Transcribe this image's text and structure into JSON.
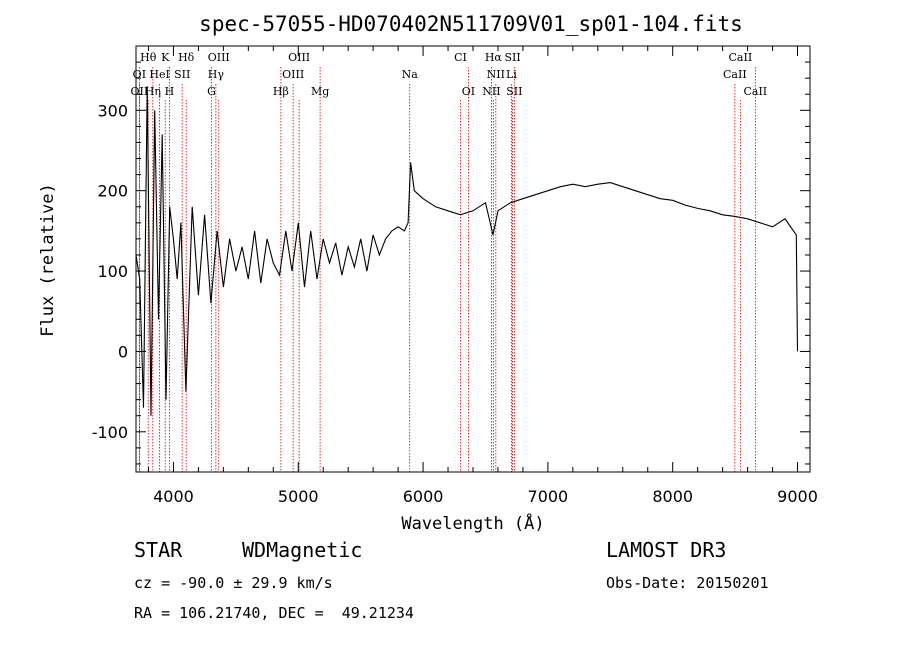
{
  "chart_data": {
    "type": "line",
    "title": "spec-57055-HD070402N511709V01_sp01-104.fits",
    "xlabel": "Wavelength (Å)",
    "ylabel": "Flux (relative)",
    "xlim": [
      3700,
      9100
    ],
    "ylim": [
      -150,
      380
    ],
    "xticks": [
      4000,
      5000,
      6000,
      7000,
      8000,
      9000
    ],
    "yticks": [
      -100,
      0,
      100,
      200,
      300
    ],
    "series": [
      {
        "name": "flux",
        "x": [
          3700,
          3730,
          3760,
          3790,
          3820,
          3850,
          3880,
          3910,
          3940,
          3970,
          4000,
          4030,
          4060,
          4100,
          4150,
          4200,
          4250,
          4300,
          4350,
          4400,
          4450,
          4500,
          4550,
          4600,
          4650,
          4700,
          4750,
          4800,
          4850,
          4900,
          4950,
          5000,
          5050,
          5100,
          5150,
          5200,
          5250,
          5300,
          5350,
          5400,
          5450,
          5500,
          5550,
          5600,
          5650,
          5700,
          5750,
          5800,
          5850,
          5880,
          5900,
          5930,
          6000,
          6100,
          6200,
          6300,
          6400,
          6500,
          6560,
          6600,
          6700,
          6800,
          6900,
          7000,
          7100,
          7200,
          7300,
          7400,
          7500,
          7600,
          7700,
          7800,
          7900,
          8000,
          8100,
          8200,
          8300,
          8400,
          8500,
          8600,
          8700,
          8800,
          8900,
          8990,
          9000
        ],
        "values": [
          120,
          90,
          -70,
          330,
          -80,
          300,
          40,
          270,
          -60,
          180,
          140,
          90,
          160,
          -50,
          180,
          70,
          170,
          60,
          150,
          80,
          140,
          100,
          130,
          90,
          150,
          85,
          140,
          110,
          95,
          150,
          100,
          160,
          80,
          150,
          90,
          140,
          110,
          135,
          95,
          130,
          105,
          140,
          100,
          145,
          120,
          140,
          150,
          155,
          150,
          160,
          235,
          200,
          190,
          180,
          175,
          170,
          175,
          185,
          145,
          175,
          185,
          190,
          195,
          200,
          205,
          208,
          205,
          208,
          210,
          205,
          200,
          195,
          190,
          188,
          182,
          178,
          175,
          170,
          168,
          165,
          160,
          155,
          165,
          145,
          0
        ]
      }
    ],
    "emission_lines": [
      {
        "label": "Hθ",
        "x": 3798,
        "row": 1
      },
      {
        "label": "K",
        "x": 3934,
        "row": 1
      },
      {
        "label": "Hδ",
        "x": 4102,
        "row": 1
      },
      {
        "label": "OIII",
        "x": 4363,
        "row": 1
      },
      {
        "label": "OIII",
        "x": 5007,
        "row": 1
      },
      {
        "label": "CI",
        "x": 6300,
        "row": 1
      },
      {
        "label": "Hα",
        "x": 6563,
        "row": 1
      },
      {
        "label": "SII",
        "x": 6717,
        "row": 1
      },
      {
        "label": "CaII",
        "x": 8542,
        "row": 1
      },
      {
        "label": "OI",
        "x": 3727,
        "row": 2
      },
      {
        "label": "HeI",
        "x": 3889,
        "row": 2
      },
      {
        "label": "SII",
        "x": 4070,
        "row": 2
      },
      {
        "label": "Hγ",
        "x": 4340,
        "row": 2
      },
      {
        "label": "OIII",
        "x": 4959,
        "row": 2
      },
      {
        "label": "Na",
        "x": 5893,
        "row": 2
      },
      {
        "label": "NII",
        "x": 6583,
        "row": 2
      },
      {
        "label": "Li",
        "x": 6708,
        "row": 2
      },
      {
        "label": "CaII",
        "x": 8498,
        "row": 2
      },
      {
        "label": "OII",
        "x": 3727,
        "row": 3
      },
      {
        "label": "Hη",
        "x": 3835,
        "row": 3
      },
      {
        "label": "H",
        "x": 3968,
        "row": 3
      },
      {
        "label": "G",
        "x": 4305,
        "row": 3
      },
      {
        "label": "Hβ",
        "x": 4861,
        "row": 3
      },
      {
        "label": "Mg",
        "x": 5175,
        "row": 3
      },
      {
        "label": "OI",
        "x": 6363,
        "row": 3
      },
      {
        "label": "NII",
        "x": 6548,
        "row": 3
      },
      {
        "label": "SII",
        "x": 6731,
        "row": 3
      },
      {
        "label": "CaII",
        "x": 8662,
        "row": 3
      }
    ],
    "line_color": "#000000",
    "marker_color": "#cc0000"
  },
  "info": {
    "class": "STAR",
    "subclass": "WDMagnetic",
    "survey": "LAMOST DR3",
    "cz": "cz = -90.0 ± 29.9 km/s",
    "obs_date": "Obs-Date: 20150201",
    "radec": "RA = 106.21740, DEC =  49.21234"
  }
}
